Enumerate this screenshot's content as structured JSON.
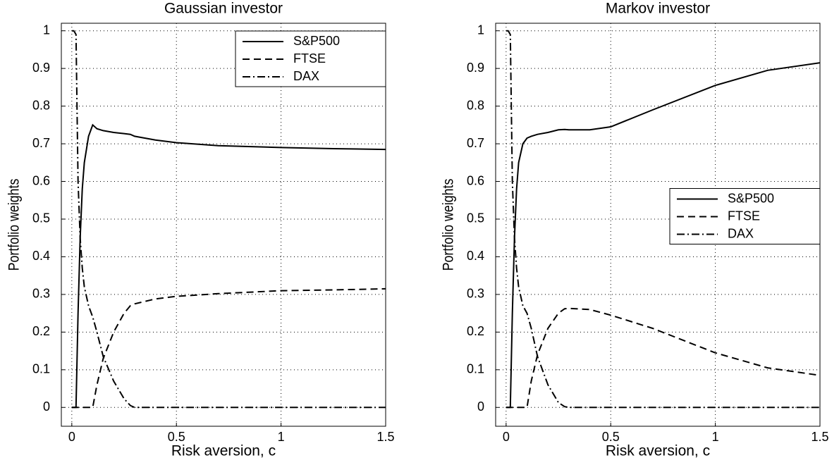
{
  "chart_data": [
    {
      "type": "line",
      "title": "Gaussian investor",
      "x_label": "Risk aversion, c",
      "y_label": "Portfolio weights",
      "x": [
        0,
        0.01,
        0.02,
        0.03,
        0.04,
        0.05,
        0.06,
        0.08,
        0.1,
        0.12,
        0.15,
        0.2,
        0.25,
        0.28,
        0.3,
        0.4,
        0.5,
        0.7,
        1.0,
        1.25,
        1.5
      ],
      "series": [
        {
          "name": "S&P500",
          "color": "#000000",
          "linestyle": "solid",
          "values": [
            0,
            0,
            0,
            0.25,
            0.45,
            0.58,
            0.65,
            0.72,
            0.75,
            0.74,
            0.735,
            0.73,
            0.727,
            0.725,
            0.72,
            0.71,
            0.703,
            0.695,
            0.69,
            0.687,
            0.685
          ]
        },
        {
          "name": "FTSE",
          "color": "#000000",
          "linestyle": "dashed",
          "values": [
            0,
            0,
            0,
            0,
            0,
            0,
            0,
            0,
            0,
            0.06,
            0.13,
            0.2,
            0.25,
            0.27,
            0.275,
            0.288,
            0.295,
            0.302,
            0.31,
            0.312,
            0.315
          ]
        },
        {
          "name": "DAX",
          "color": "#000000",
          "linestyle": "dashdot",
          "values": [
            1,
            1,
            0.99,
            0.6,
            0.45,
            0.37,
            0.32,
            0.27,
            0.24,
            0.2,
            0.135,
            0.07,
            0.023,
            0.005,
            0,
            0,
            0,
            0,
            0,
            0,
            0
          ]
        }
      ],
      "xlim": [
        -0.05,
        1.5
      ],
      "ylim": [
        -0.05,
        1.02
      ],
      "xticks": [
        0,
        0.5,
        1,
        1.5
      ],
      "yticks": [
        0,
        0.1,
        0.2,
        0.3,
        0.4,
        0.5,
        0.6,
        0.7,
        0.8,
        0.9,
        1
      ],
      "grid": true,
      "legend": "upper right"
    },
    {
      "type": "line",
      "title": "Markov investor",
      "x_label": "Risk aversion, c",
      "y_label": "Portfolio weights",
      "x": [
        0,
        0.01,
        0.02,
        0.03,
        0.04,
        0.05,
        0.06,
        0.08,
        0.1,
        0.12,
        0.15,
        0.2,
        0.25,
        0.28,
        0.3,
        0.4,
        0.5,
        0.7,
        1.0,
        1.25,
        1.5
      ],
      "series": [
        {
          "name": "S&P500",
          "color": "#000000",
          "linestyle": "solid",
          "values": [
            0,
            0,
            0,
            0.25,
            0.45,
            0.58,
            0.65,
            0.7,
            0.715,
            0.72,
            0.725,
            0.73,
            0.737,
            0.738,
            0.737,
            0.737,
            0.745,
            0.79,
            0.855,
            0.895,
            0.915
          ]
        },
        {
          "name": "FTSE",
          "color": "#000000",
          "linestyle": "dashed",
          "values": [
            0,
            0,
            0,
            0,
            0,
            0,
            0,
            0,
            0,
            0.07,
            0.14,
            0.21,
            0.25,
            0.262,
            0.263,
            0.26,
            0.245,
            0.21,
            0.145,
            0.105,
            0.085
          ]
        },
        {
          "name": "DAX",
          "color": "#000000",
          "linestyle": "dashdot",
          "values": [
            1,
            1,
            0.99,
            0.6,
            0.45,
            0.37,
            0.32,
            0.27,
            0.25,
            0.21,
            0.135,
            0.06,
            0.013,
            0.002,
            0,
            0,
            0,
            0,
            0,
            0,
            0
          ]
        }
      ],
      "xlim": [
        -0.05,
        1.5
      ],
      "ylim": [
        -0.05,
        1.02
      ],
      "xticks": [
        0,
        0.5,
        1,
        1.5
      ],
      "yticks": [
        0,
        0.1,
        0.2,
        0.3,
        0.4,
        0.5,
        0.6,
        0.7,
        0.8,
        0.9,
        1
      ],
      "grid": true,
      "legend": "center right"
    }
  ]
}
